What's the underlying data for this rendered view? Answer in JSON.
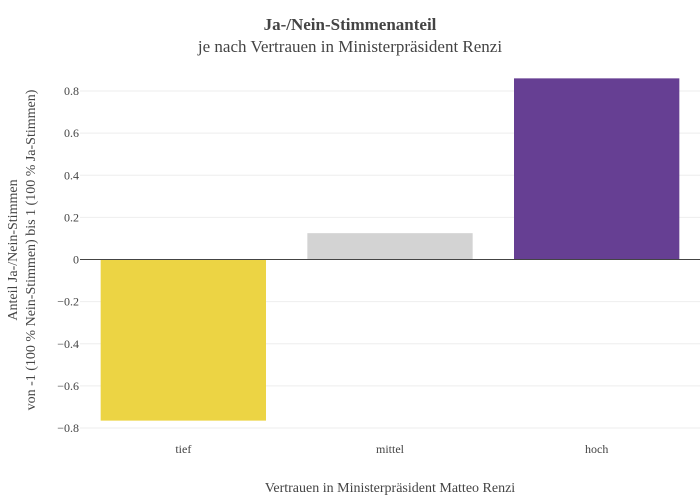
{
  "chart_data": {
    "type": "bar",
    "title": "Ja-/Nein-Stimmenanteil",
    "subtitle": "je nach Vertrauen in Ministerpräsident Renzi",
    "xlabel": "Vertrauen in Ministerpräsident Matteo Renzi",
    "ylabel_line1": "Anteil Ja-/Nein-Stimmen",
    "ylabel_line2": "von -1 (100 % Nein-Stimmen) bis 1 (100 % Ja-Stimmen)",
    "categories": [
      "tief",
      "mittel",
      "hoch"
    ],
    "values": [
      -0.765,
      0.125,
      0.86
    ],
    "colors": [
      "#ecd444",
      "#d3d3d3",
      "#663f93"
    ],
    "ylim": [
      -0.8,
      0.8
    ],
    "yticks": [
      0.8,
      0.6,
      0.4,
      0.2,
      0,
      -0.2,
      -0.4,
      -0.6,
      -0.8
    ],
    "ytick_labels": [
      "0.8",
      "0.6",
      "0.4",
      "0.2",
      "0",
      "−0.2",
      "−0.4",
      "−0.6",
      "−0.8"
    ],
    "grid": true,
    "legend": "none"
  }
}
